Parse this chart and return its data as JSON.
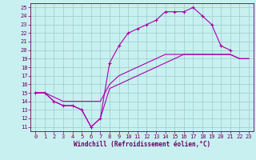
{
  "xlabel": "Windchill (Refroidissement éolien,°C)",
  "bg_color": "#c8f0f0",
  "line_color": "#aa00aa",
  "grid_color": "#99cccc",
  "spine_color": "#660066",
  "tick_color": "#660066",
  "xlim": [
    -0.5,
    23.5
  ],
  "ylim": [
    10.5,
    25.5
  ],
  "yticks": [
    11,
    12,
    13,
    14,
    15,
    16,
    17,
    18,
    19,
    20,
    21,
    22,
    23,
    24,
    25
  ],
  "xticks": [
    0,
    1,
    2,
    3,
    4,
    5,
    6,
    7,
    8,
    9,
    10,
    11,
    12,
    13,
    14,
    15,
    16,
    17,
    18,
    19,
    20,
    21,
    22,
    23
  ],
  "line1_x": [
    0,
    1,
    2,
    3,
    4,
    5,
    6,
    7,
    8,
    9,
    10,
    11,
    12,
    13,
    14,
    15,
    16,
    17,
    18,
    19,
    20,
    21
  ],
  "line1_y": [
    15,
    15,
    14,
    13.5,
    13.5,
    13,
    11,
    12,
    18.5,
    20.5,
    22,
    22.5,
    23,
    23.5,
    24.5,
    24.5,
    24.5,
    25,
    24,
    23,
    20.5,
    20
  ],
  "line2_x": [
    0,
    1,
    2,
    3,
    4,
    5,
    6,
    7,
    8,
    9,
    10,
    11,
    12,
    13,
    14,
    15,
    16,
    17,
    18,
    19,
    20,
    21,
    22,
    23
  ],
  "line2_y": [
    15,
    15,
    14,
    13.5,
    13.5,
    13,
    11,
    12,
    15.5,
    16,
    16.5,
    17,
    17.5,
    18,
    18.5,
    19,
    19.5,
    19.5,
    19.5,
    19.5,
    19.5,
    19.5,
    19,
    19
  ],
  "line3_x": [
    0,
    1,
    2,
    3,
    4,
    5,
    6,
    7,
    8,
    9,
    10,
    11,
    12,
    13,
    14,
    15,
    16,
    17,
    18,
    19,
    20,
    21,
    22,
    23
  ],
  "line3_y": [
    15,
    15,
    14.5,
    14,
    14,
    14,
    14,
    14,
    16,
    17,
    17.5,
    18,
    18.5,
    19,
    19.5,
    19.5,
    19.5,
    19.5,
    19.5,
    19.5,
    19.5,
    19.5,
    19,
    19
  ]
}
